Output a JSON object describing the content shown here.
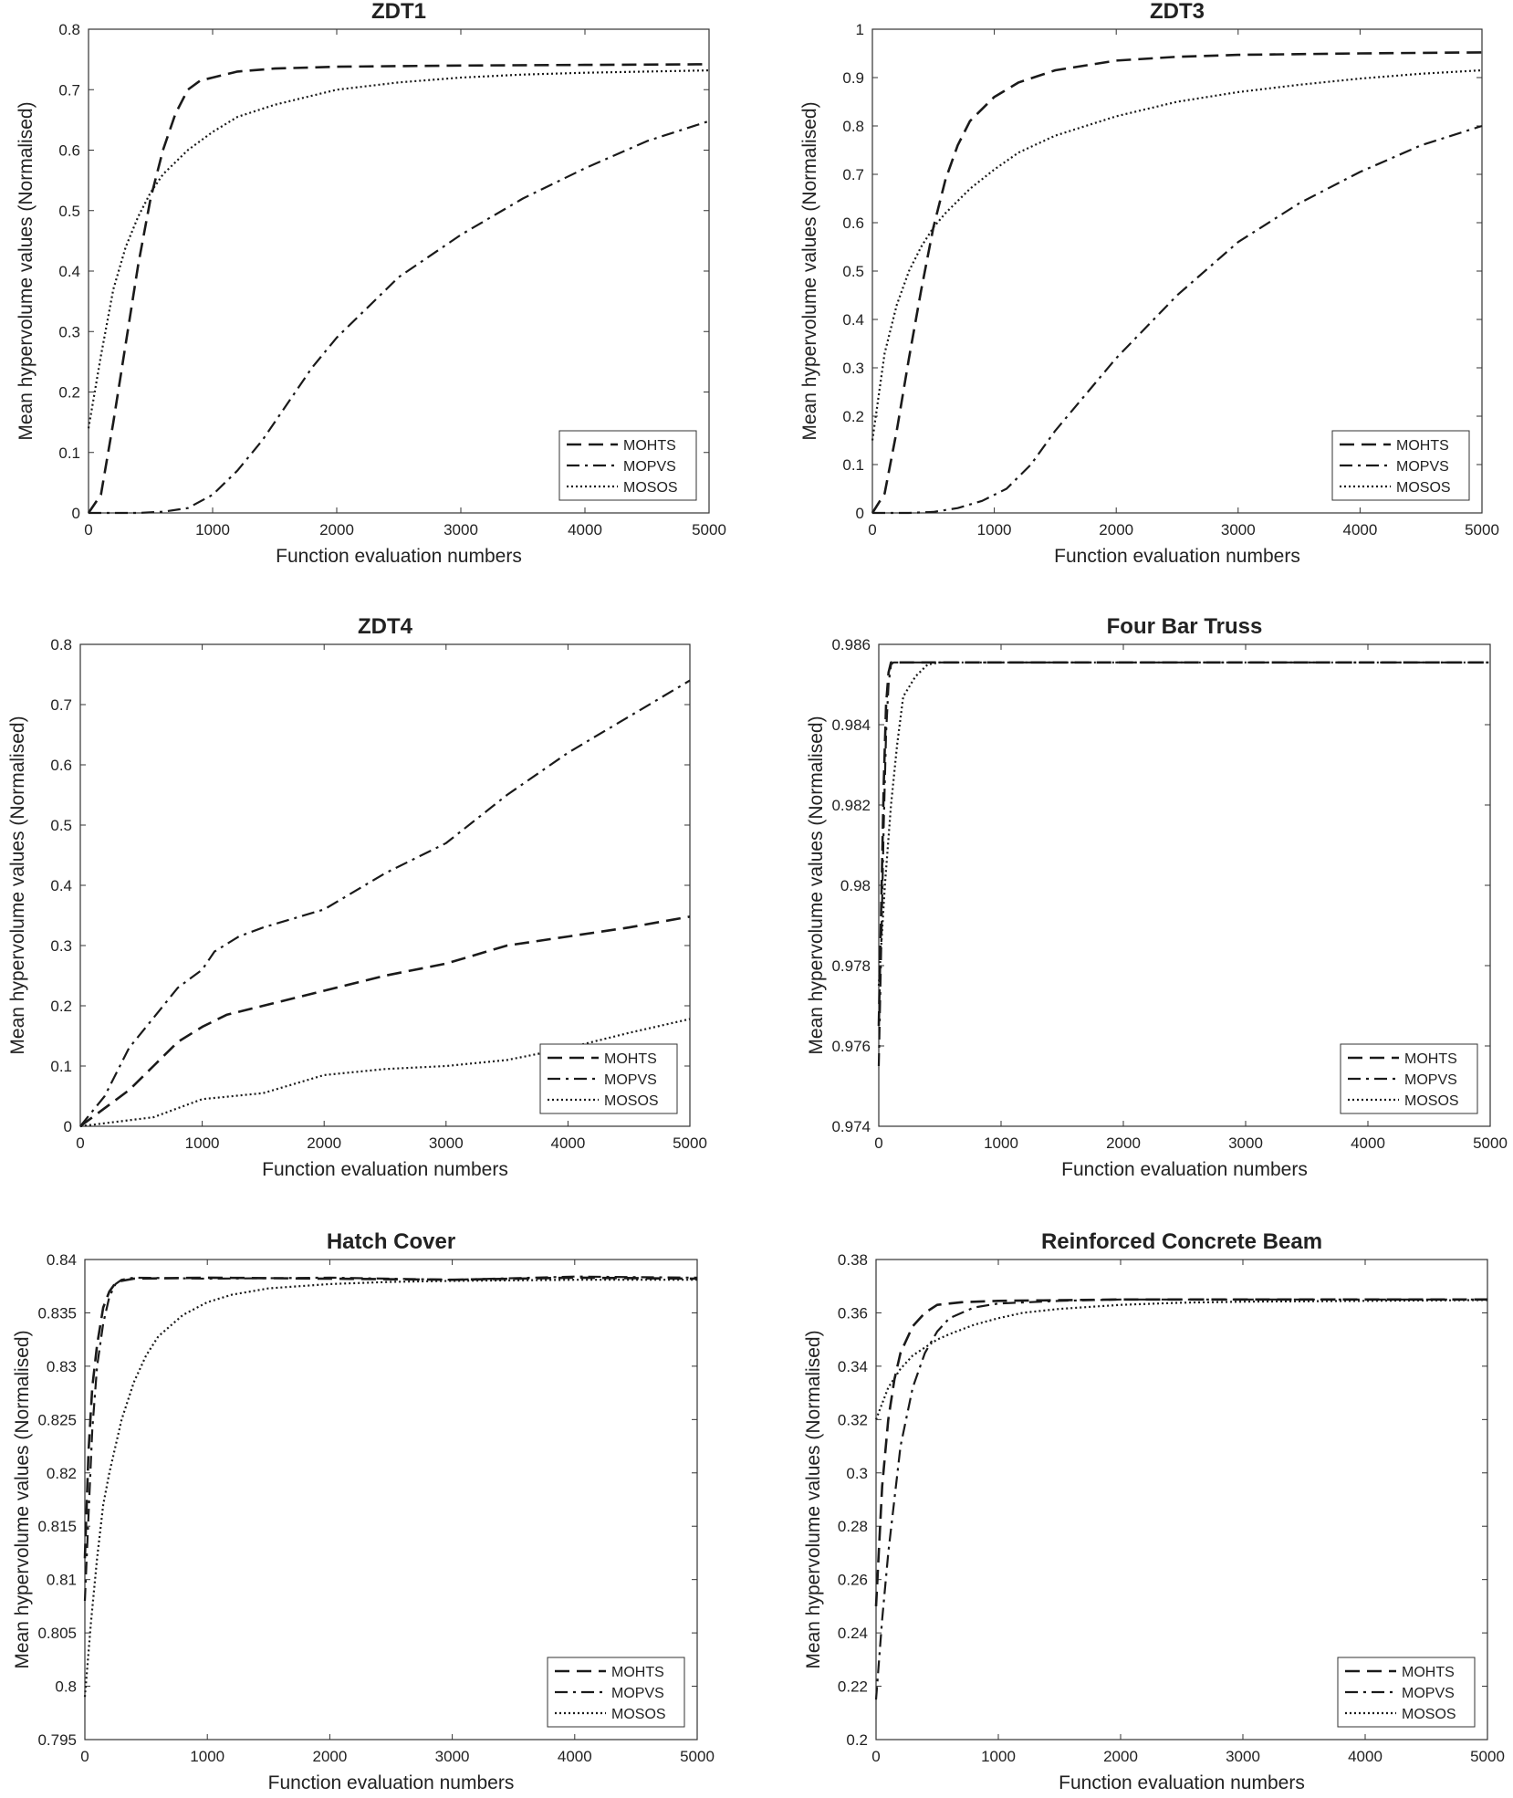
{
  "figure": {
    "xlabel": "Function evaluation numbers",
    "ylabel": "Mean hypervolume values (Normalised)"
  },
  "chart_data": [
    {
      "type": "line",
      "title": "ZDT1",
      "xlabel": "Function evaluation numbers",
      "ylabel": "Mean hypervolume values (Normalised)",
      "xlim": [
        0,
        5000
      ],
      "ylim": [
        0,
        0.8
      ],
      "xticks": [
        "0",
        "1000",
        "2000",
        "3000",
        "4000",
        "5000"
      ],
      "yticks": [
        "0",
        "0.1",
        "0.2",
        "0.3",
        "0.4",
        "0.5",
        "0.6",
        "0.7",
        "0.8"
      ],
      "legend_position": "bottom-right",
      "series": [
        {
          "name": "MOHTS",
          "style": "dashed",
          "x": [
            0,
            100,
            200,
            300,
            400,
            500,
            600,
            700,
            800,
            900,
            1000,
            1200,
            1500,
            2000,
            3000,
            4000,
            5000
          ],
          "y": [
            0,
            0.03,
            0.15,
            0.28,
            0.41,
            0.52,
            0.6,
            0.66,
            0.7,
            0.715,
            0.72,
            0.73,
            0.735,
            0.738,
            0.74,
            0.741,
            0.742
          ]
        },
        {
          "name": "MOPVS",
          "style": "dashdot",
          "x": [
            0,
            200,
            400,
            600,
            800,
            1000,
            1200,
            1400,
            1600,
            1800,
            2000,
            2500,
            3000,
            3500,
            4000,
            4500,
            5000
          ],
          "y": [
            0,
            0,
            0,
            0.002,
            0.008,
            0.03,
            0.07,
            0.12,
            0.18,
            0.24,
            0.29,
            0.39,
            0.46,
            0.52,
            0.57,
            0.615,
            0.648
          ]
        },
        {
          "name": "MOSOS",
          "style": "dotted",
          "x": [
            0,
            100,
            200,
            300,
            400,
            500,
            600,
            800,
            1000,
            1200,
            1500,
            2000,
            2500,
            3000,
            3500,
            4000,
            4500,
            5000
          ],
          "y": [
            0.14,
            0.26,
            0.37,
            0.44,
            0.49,
            0.53,
            0.56,
            0.6,
            0.63,
            0.655,
            0.675,
            0.7,
            0.712,
            0.72,
            0.725,
            0.728,
            0.73,
            0.732
          ]
        }
      ]
    },
    {
      "type": "line",
      "title": "ZDT3",
      "xlabel": "Function evaluation numbers",
      "ylabel": "Mean hypervolume values (Normalised)",
      "xlim": [
        0,
        5000
      ],
      "ylim": [
        0,
        1
      ],
      "xticks": [
        "0",
        "1000",
        "2000",
        "3000",
        "4000",
        "5000"
      ],
      "yticks": [
        "0",
        "0.1",
        "0.2",
        "0.3",
        "0.4",
        "0.5",
        "0.6",
        "0.7",
        "0.8",
        "0.9",
        "1"
      ],
      "legend_position": "bottom-right",
      "series": [
        {
          "name": "MOHTS",
          "style": "dashed",
          "x": [
            0,
            100,
            200,
            300,
            400,
            500,
            600,
            700,
            800,
            1000,
            1200,
            1500,
            2000,
            2500,
            3000,
            4000,
            5000
          ],
          "y": [
            0,
            0.04,
            0.17,
            0.32,
            0.46,
            0.59,
            0.69,
            0.76,
            0.81,
            0.86,
            0.89,
            0.915,
            0.935,
            0.943,
            0.947,
            0.95,
            0.952
          ]
        },
        {
          "name": "MOPVS",
          "style": "dashdot",
          "x": [
            0,
            300,
            500,
            700,
            900,
            1100,
            1300,
            1500,
            1700,
            1900,
            2000,
            2500,
            3000,
            3500,
            4000,
            4500,
            5000
          ],
          "y": [
            0,
            0,
            0.002,
            0.01,
            0.025,
            0.05,
            0.1,
            0.17,
            0.23,
            0.29,
            0.32,
            0.45,
            0.56,
            0.64,
            0.705,
            0.76,
            0.8
          ]
        },
        {
          "name": "MOSOS",
          "style": "dotted",
          "x": [
            0,
            100,
            200,
            300,
            400,
            500,
            600,
            800,
            1000,
            1200,
            1500,
            2000,
            2500,
            3000,
            3500,
            4000,
            4500,
            5000
          ],
          "y": [
            0.15,
            0.33,
            0.43,
            0.5,
            0.55,
            0.59,
            0.62,
            0.67,
            0.71,
            0.745,
            0.78,
            0.82,
            0.85,
            0.87,
            0.885,
            0.898,
            0.908,
            0.915
          ]
        }
      ]
    },
    {
      "type": "line",
      "title": "ZDT4",
      "xlabel": "Function evaluation numbers",
      "ylabel": "Mean hypervolume values (Normalised)",
      "xlim": [
        0,
        5000
      ],
      "ylim": [
        0,
        0.8
      ],
      "xticks": [
        "0",
        "1000",
        "2000",
        "3000",
        "4000",
        "5000"
      ],
      "yticks": [
        "0",
        "0.1",
        "0.2",
        "0.3",
        "0.4",
        "0.5",
        "0.6",
        "0.7",
        "0.8"
      ],
      "legend_position": "bottom-right",
      "series": [
        {
          "name": "MOHTS",
          "style": "dashed",
          "x": [
            0,
            200,
            400,
            600,
            800,
            1000,
            1200,
            1500,
            2000,
            2500,
            3000,
            3500,
            4000,
            4500,
            5000
          ],
          "y": [
            0,
            0.03,
            0.06,
            0.1,
            0.14,
            0.165,
            0.185,
            0.2,
            0.225,
            0.25,
            0.27,
            0.3,
            0.315,
            0.33,
            0.348
          ]
        },
        {
          "name": "MOPVS",
          "style": "dashdot",
          "x": [
            0,
            200,
            400,
            600,
            800,
            1000,
            1100,
            1300,
            1500,
            2000,
            2500,
            3000,
            3500,
            4000,
            4500,
            5000
          ],
          "y": [
            0,
            0.05,
            0.13,
            0.18,
            0.23,
            0.26,
            0.29,
            0.315,
            0.33,
            0.36,
            0.42,
            0.47,
            0.55,
            0.62,
            0.68,
            0.74
          ]
        },
        {
          "name": "MOSOS",
          "style": "dotted",
          "x": [
            0,
            200,
            400,
            600,
            800,
            1000,
            1500,
            2000,
            2500,
            3000,
            3500,
            4000,
            4500,
            5000
          ],
          "y": [
            0,
            0.005,
            0.01,
            0.015,
            0.03,
            0.045,
            0.055,
            0.085,
            0.095,
            0.1,
            0.11,
            0.13,
            0.155,
            0.178
          ]
        }
      ]
    },
    {
      "type": "line",
      "title": "Four Bar Truss",
      "xlabel": "Function evaluation numbers",
      "ylabel": "Mean hypervolume values (Normalised)",
      "xlim": [
        0,
        5000
      ],
      "ylim": [
        0.974,
        0.986
      ],
      "xticks": [
        "0",
        "1000",
        "2000",
        "3000",
        "4000",
        "5000"
      ],
      "yticks": [
        "0.974",
        "0.976",
        "0.978",
        "0.98",
        "0.982",
        "0.984",
        "0.986"
      ],
      "legend_position": "bottom-right",
      "series": [
        {
          "name": "MOHTS",
          "style": "dashed",
          "x": [
            0,
            20,
            40,
            60,
            80,
            100,
            5000
          ],
          "y": [
            0.9765,
            0.9795,
            0.9825,
            0.9845,
            0.9853,
            0.98555,
            0.98555
          ]
        },
        {
          "name": "MOPVS",
          "style": "dashdot",
          "x": [
            0,
            20,
            40,
            60,
            80,
            100,
            120,
            5000
          ],
          "y": [
            0.9755,
            0.9785,
            0.9815,
            0.9838,
            0.985,
            0.9855,
            0.98555,
            0.98555
          ]
        },
        {
          "name": "MOSOS",
          "style": "dotted",
          "x": [
            0,
            50,
            100,
            150,
            200,
            300,
            400,
            500,
            5000
          ],
          "y": [
            0.9775,
            0.98,
            0.982,
            0.9835,
            0.9847,
            0.9852,
            0.9855,
            0.98555,
            0.98555
          ]
        }
      ]
    },
    {
      "type": "line",
      "title": "Hatch Cover",
      "xlabel": "Function evaluation numbers",
      "ylabel": "Mean hypervolume values (Normalised)",
      "xlim": [
        0,
        5000
      ],
      "ylim": [
        0.795,
        0.84
      ],
      "xticks": [
        "0",
        "1000",
        "2000",
        "3000",
        "4000",
        "5000"
      ],
      "yticks": [
        "0.795",
        "0.8",
        "0.805",
        "0.81",
        "0.815",
        "0.82",
        "0.825",
        "0.83",
        "0.835",
        "0.84"
      ],
      "legend_position": "bottom-right",
      "series": [
        {
          "name": "MOHTS",
          "style": "dashed",
          "x": [
            0,
            30,
            60,
            100,
            150,
            200,
            250,
            300,
            400,
            1000,
            2000,
            3000,
            4000,
            5000
          ],
          "y": [
            0.812,
            0.822,
            0.828,
            0.832,
            0.8355,
            0.837,
            0.8378,
            0.838,
            0.8382,
            0.8383,
            0.8382,
            0.8381,
            0.8383,
            0.8382
          ]
        },
        {
          "name": "MOPVS",
          "style": "dashdot",
          "x": [
            0,
            30,
            60,
            100,
            150,
            200,
            250,
            300,
            400,
            1000,
            2000,
            3000,
            4000,
            5000
          ],
          "y": [
            0.808,
            0.816,
            0.824,
            0.83,
            0.834,
            0.8365,
            0.8377,
            0.8381,
            0.8383,
            0.8382,
            0.8383,
            0.8381,
            0.8384,
            0.8383
          ]
        },
        {
          "name": "MOSOS",
          "style": "dotted",
          "x": [
            0,
            50,
            100,
            150,
            200,
            300,
            400,
            500,
            600,
            800,
            1000,
            1200,
            1500,
            2000,
            2500,
            3000,
            4000,
            5000
          ],
          "y": [
            0.799,
            0.806,
            0.812,
            0.817,
            0.82,
            0.825,
            0.8285,
            0.831,
            0.8328,
            0.8348,
            0.836,
            0.8367,
            0.8373,
            0.8377,
            0.8379,
            0.838,
            0.8381,
            0.8381
          ]
        }
      ]
    },
    {
      "type": "line",
      "title": "Reinforced Concrete Beam",
      "xlabel": "Function evaluation numbers",
      "ylabel": "Mean hypervolume values (Normalised)",
      "xlim": [
        0,
        5000
      ],
      "ylim": [
        0.2,
        0.38
      ],
      "xticks": [
        "0",
        "1000",
        "2000",
        "3000",
        "4000",
        "5000"
      ],
      "yticks": [
        "0.2",
        "0.22",
        "0.24",
        "0.26",
        "0.28",
        "0.3",
        "0.32",
        "0.34",
        "0.36",
        "0.38"
      ],
      "legend_position": "bottom-right",
      "series": [
        {
          "name": "MOHTS",
          "style": "dashed",
          "x": [
            0,
            50,
            100,
            150,
            200,
            300,
            400,
            500,
            700,
            1000,
            2000,
            3000,
            4000,
            5000
          ],
          "y": [
            0.25,
            0.295,
            0.32,
            0.335,
            0.345,
            0.355,
            0.36,
            0.363,
            0.364,
            0.3645,
            0.365,
            0.365,
            0.365,
            0.365
          ]
        },
        {
          "name": "MOPVS",
          "style": "dashdot",
          "x": [
            0,
            50,
            100,
            150,
            200,
            300,
            400,
            500,
            600,
            800,
            1000,
            1500,
            2000,
            3000,
            4000,
            5000
          ],
          "y": [
            0.215,
            0.245,
            0.27,
            0.29,
            0.31,
            0.332,
            0.345,
            0.353,
            0.358,
            0.362,
            0.3635,
            0.3645,
            0.365,
            0.365,
            0.365,
            0.365
          ]
        },
        {
          "name": "MOSOS",
          "style": "dotted",
          "x": [
            0,
            100,
            200,
            300,
            400,
            500,
            600,
            800,
            1000,
            1200,
            1500,
            2000,
            2500,
            3000,
            4000,
            5000
          ],
          "y": [
            0.32,
            0.332,
            0.339,
            0.344,
            0.347,
            0.35,
            0.352,
            0.3555,
            0.358,
            0.36,
            0.3615,
            0.363,
            0.3638,
            0.3642,
            0.3645,
            0.3648
          ]
        }
      ]
    }
  ]
}
